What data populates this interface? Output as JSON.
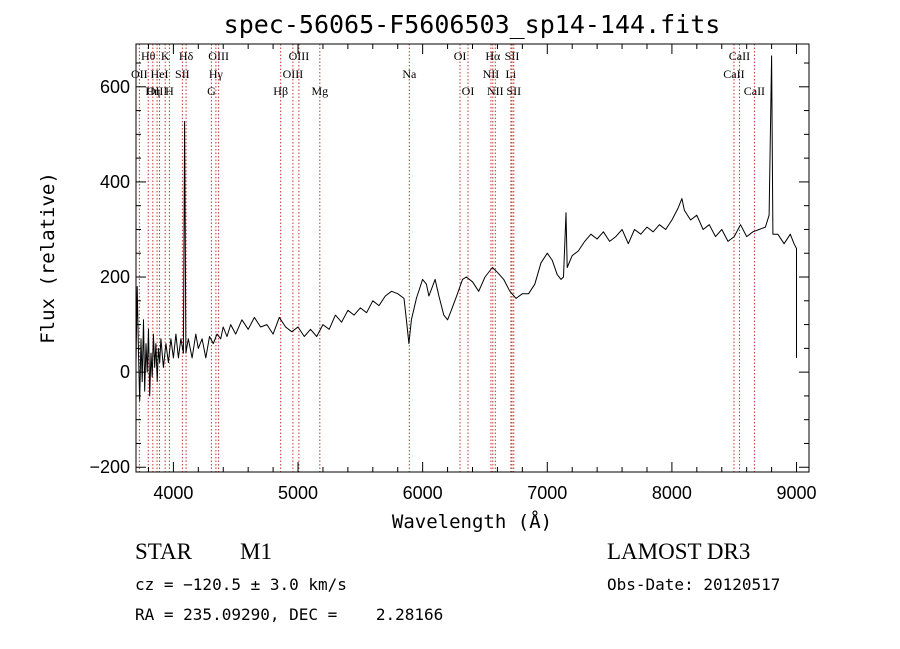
{
  "chart_data": {
    "type": "line",
    "title": "spec-56065-F5606503_sp14-144.fits",
    "xlabel": "Wavelength (Å)",
    "ylabel": "Flux (relative)",
    "xlim": [
      3700,
      9100
    ],
    "ylim": [
      -210,
      690
    ],
    "xticks": [
      4000,
      5000,
      6000,
      7000,
      8000,
      9000
    ],
    "yticks": [
      -200,
      0,
      200,
      400,
      600
    ],
    "grid": false,
    "series": [
      {
        "values": [
          [
            3700,
            20
          ],
          [
            3710,
            180
          ],
          [
            3720,
            40
          ],
          [
            3730,
            -60
          ],
          [
            3740,
            70
          ],
          [
            3750,
            -20
          ],
          [
            3760,
            110
          ],
          [
            3770,
            -40
          ],
          [
            3780,
            60
          ],
          [
            3790,
            0
          ],
          [
            3800,
            90
          ],
          [
            3810,
            -50
          ],
          [
            3820,
            40
          ],
          [
            3830,
            -10
          ],
          [
            3840,
            80
          ],
          [
            3850,
            10
          ],
          [
            3860,
            60
          ],
          [
            3870,
            -20
          ],
          [
            3880,
            50
          ],
          [
            3890,
            20
          ],
          [
            3900,
            70
          ],
          [
            3920,
            10
          ],
          [
            3940,
            60
          ],
          [
            3960,
            20
          ],
          [
            3980,
            70
          ],
          [
            4000,
            30
          ],
          [
            4020,
            80
          ],
          [
            4040,
            30
          ],
          [
            4060,
            70
          ],
          [
            4080,
            40
          ],
          [
            4090,
            527
          ],
          [
            4100,
            40
          ],
          [
            4120,
            70
          ],
          [
            4150,
            30
          ],
          [
            4180,
            80
          ],
          [
            4200,
            50
          ],
          [
            4230,
            70
          ],
          [
            4260,
            30
          ],
          [
            4290,
            75
          ],
          [
            4320,
            60
          ],
          [
            4350,
            80
          ],
          [
            4380,
            70
          ],
          [
            4400,
            95
          ],
          [
            4430,
            75
          ],
          [
            4460,
            100
          ],
          [
            4500,
            80
          ],
          [
            4550,
            110
          ],
          [
            4600,
            90
          ],
          [
            4650,
            115
          ],
          [
            4700,
            95
          ],
          [
            4750,
            100
          ],
          [
            4800,
            80
          ],
          [
            4850,
            115
          ],
          [
            4900,
            95
          ],
          [
            4950,
            85
          ],
          [
            5000,
            95
          ],
          [
            5050,
            75
          ],
          [
            5100,
            90
          ],
          [
            5150,
            75
          ],
          [
            5200,
            100
          ],
          [
            5250,
            90
          ],
          [
            5300,
            120
          ],
          [
            5350,
            105
          ],
          [
            5400,
            130
          ],
          [
            5450,
            120
          ],
          [
            5500,
            135
          ],
          [
            5550,
            125
          ],
          [
            5600,
            150
          ],
          [
            5650,
            140
          ],
          [
            5700,
            160
          ],
          [
            5750,
            170
          ],
          [
            5800,
            165
          ],
          [
            5850,
            155
          ],
          [
            5870,
            110
          ],
          [
            5890,
            60
          ],
          [
            5910,
            110
          ],
          [
            5950,
            155
          ],
          [
            6000,
            195
          ],
          [
            6030,
            185
          ],
          [
            6050,
            160
          ],
          [
            6100,
            195
          ],
          [
            6130,
            160
          ],
          [
            6170,
            120
          ],
          [
            6200,
            110
          ],
          [
            6230,
            130
          ],
          [
            6280,
            165
          ],
          [
            6320,
            195
          ],
          [
            6350,
            200
          ],
          [
            6400,
            190
          ],
          [
            6450,
            170
          ],
          [
            6500,
            200
          ],
          [
            6560,
            220
          ],
          [
            6600,
            210
          ],
          [
            6650,
            195
          ],
          [
            6700,
            170
          ],
          [
            6750,
            155
          ],
          [
            6800,
            165
          ],
          [
            6850,
            165
          ],
          [
            6900,
            185
          ],
          [
            6950,
            230
          ],
          [
            7000,
            250
          ],
          [
            7040,
            235
          ],
          [
            7080,
            205
          ],
          [
            7110,
            195
          ],
          [
            7130,
            200
          ],
          [
            7150,
            335
          ],
          [
            7160,
            220
          ],
          [
            7200,
            245
          ],
          [
            7250,
            255
          ],
          [
            7300,
            275
          ],
          [
            7350,
            290
          ],
          [
            7400,
            280
          ],
          [
            7450,
            295
          ],
          [
            7500,
            275
          ],
          [
            7550,
            285
          ],
          [
            7600,
            300
          ],
          [
            7650,
            270
          ],
          [
            7700,
            300
          ],
          [
            7750,
            290
          ],
          [
            7800,
            305
          ],
          [
            7850,
            295
          ],
          [
            7900,
            310
          ],
          [
            7950,
            300
          ],
          [
            8000,
            320
          ],
          [
            8050,
            345
          ],
          [
            8080,
            365
          ],
          [
            8100,
            340
          ],
          [
            8150,
            320
          ],
          [
            8200,
            330
          ],
          [
            8250,
            300
          ],
          [
            8300,
            310
          ],
          [
            8350,
            285
          ],
          [
            8400,
            300
          ],
          [
            8450,
            275
          ],
          [
            8500,
            285
          ],
          [
            8550,
            310
          ],
          [
            8600,
            285
          ],
          [
            8650,
            295
          ],
          [
            8700,
            300
          ],
          [
            8750,
            305
          ],
          [
            8780,
            330
          ],
          [
            8800,
            665
          ],
          [
            8810,
            290
          ],
          [
            8850,
            290
          ],
          [
            8900,
            270
          ],
          [
            8950,
            290
          ],
          [
            8980,
            270
          ],
          [
            9000,
            260
          ],
          [
            9000,
            30
          ]
        ]
      }
    ],
    "line_markers": [
      {
        "label": "Hθ",
        "x": 3798,
        "row": 1
      },
      {
        "label": "OII",
        "x": 3727,
        "row": 2
      },
      {
        "label": "OIII",
        "x": 3869,
        "row": 3
      },
      {
        "label": "Hη",
        "x": 3835,
        "row": 3
      },
      {
        "label": "HeI",
        "x": 3889,
        "row": 2
      },
      {
        "label": "K",
        "x": 3934,
        "row": 1
      },
      {
        "label": "H",
        "x": 3968,
        "row": 3
      },
      {
        "label": "SII",
        "x": 4072,
        "row": 2
      },
      {
        "label": "Hδ",
        "x": 4102,
        "row": 1
      },
      {
        "label": "OIII",
        "x": 4363,
        "row": 1
      },
      {
        "label": "Hγ",
        "x": 4341,
        "row": 2
      },
      {
        "label": "G",
        "x": 4305,
        "row": 3
      },
      {
        "label": "OIII",
        "x": 5007,
        "row": 1
      },
      {
        "label": "OIII",
        "x": 4959,
        "row": 2
      },
      {
        "label": "Hβ",
        "x": 4861,
        "row": 3
      },
      {
        "label": "Mg",
        "x": 5175,
        "row": 3
      },
      {
        "label": "Na",
        "x": 5893,
        "row": 2
      },
      {
        "label": "OI",
        "x": 6300,
        "row": 1
      },
      {
        "label": "OI",
        "x": 6364,
        "row": 3
      },
      {
        "label": "Hα",
        "x": 6563,
        "row": 1
      },
      {
        "label": "SII",
        "x": 6717,
        "row": 1
      },
      {
        "label": "NII",
        "x": 6548,
        "row": 2
      },
      {
        "label": "Li",
        "x": 6708,
        "row": 2
      },
      {
        "label": "NII",
        "x": 6583,
        "row": 3
      },
      {
        "label": "SII",
        "x": 6731,
        "row": 3
      },
      {
        "label": "CaII",
        "x": 8542,
        "row": 1
      },
      {
        "label": "CaII",
        "x": 8498,
        "row": 2
      },
      {
        "label": "CaII",
        "x": 8662,
        "row": 3
      }
    ]
  },
  "info": {
    "object_class": "STAR",
    "subclass": "M1",
    "survey": "LAMOST DR3",
    "redshift": "cz = −120.5 ± 3.0 km/s",
    "obs_date": "Obs-Date: 20120517",
    "coords": "RA = 235.09290, DEC =    2.28166"
  }
}
